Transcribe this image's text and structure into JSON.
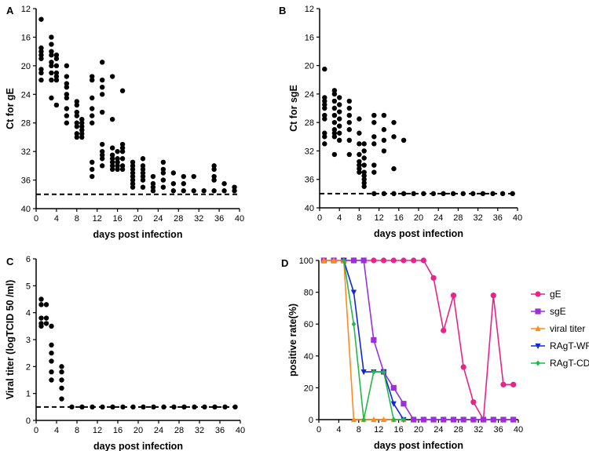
{
  "chart_data": [
    {
      "panel": "A",
      "type": "scatter",
      "xlabel": "days post infection",
      "ylabel": "Ct for gE",
      "xlim": [
        0,
        40
      ],
      "ylim": [
        12,
        40
      ],
      "y_inverted": true,
      "xticks": [
        0,
        4,
        8,
        12,
        16,
        20,
        24,
        28,
        32,
        36,
        40
      ],
      "yticks": [
        12,
        16,
        20,
        24,
        28,
        32,
        36,
        40
      ],
      "cutoff": 38,
      "points": [
        [
          1,
          13.5
        ],
        [
          1,
          17.5
        ],
        [
          1,
          18
        ],
        [
          1,
          18.5
        ],
        [
          1,
          19
        ],
        [
          1,
          20.5
        ],
        [
          1,
          21
        ],
        [
          1,
          22
        ],
        [
          3,
          16
        ],
        [
          3,
          17
        ],
        [
          3,
          18
        ],
        [
          3,
          18.5
        ],
        [
          3,
          19.5
        ],
        [
          3,
          20
        ],
        [
          3,
          21
        ],
        [
          3,
          22
        ],
        [
          3,
          24.5
        ],
        [
          4,
          18.5
        ],
        [
          4,
          19
        ],
        [
          4,
          20
        ],
        [
          4,
          21
        ],
        [
          4,
          21.5
        ],
        [
          4,
          22
        ],
        [
          4,
          25.5
        ],
        [
          6,
          20
        ],
        [
          6,
          21.5
        ],
        [
          6,
          22.5
        ],
        [
          6,
          23
        ],
        [
          6,
          24
        ],
        [
          6,
          24.5
        ],
        [
          6,
          26
        ],
        [
          6,
          27
        ],
        [
          6,
          28
        ],
        [
          8,
          25
        ],
        [
          8,
          25.5
        ],
        [
          8,
          26.5
        ],
        [
          8,
          27
        ],
        [
          8,
          28
        ],
        [
          8,
          28.5
        ],
        [
          8,
          29.5
        ],
        [
          8,
          30
        ],
        [
          9,
          27.5
        ],
        [
          9,
          28
        ],
        [
          9,
          28.5
        ],
        [
          9,
          29
        ],
        [
          9,
          29.5
        ],
        [
          9,
          30
        ],
        [
          11,
          21.5
        ],
        [
          11,
          22
        ],
        [
          11,
          24.5
        ],
        [
          11,
          26
        ],
        [
          11,
          27
        ],
        [
          11,
          28
        ],
        [
          11,
          33.5
        ],
        [
          11,
          34.5
        ],
        [
          11,
          35.5
        ],
        [
          13,
          19.5
        ],
        [
          13,
          22
        ],
        [
          13,
          23
        ],
        [
          13,
          24
        ],
        [
          13,
          26.5
        ],
        [
          13,
          31
        ],
        [
          13,
          32
        ],
        [
          13,
          32.5
        ],
        [
          13,
          33
        ],
        [
          13,
          34
        ],
        [
          15,
          21.5
        ],
        [
          15,
          27.5
        ],
        [
          15,
          31.5
        ],
        [
          15,
          32.5
        ],
        [
          15,
          33
        ],
        [
          15,
          33.5
        ],
        [
          15,
          34
        ],
        [
          15,
          34.5
        ],
        [
          16,
          32
        ],
        [
          16,
          33
        ],
        [
          16,
          33.5
        ],
        [
          16,
          34
        ],
        [
          16,
          34.5
        ],
        [
          17,
          23.5
        ],
        [
          17,
          31
        ],
        [
          17,
          31.5
        ],
        [
          17,
          32
        ],
        [
          17,
          33
        ],
        [
          17,
          34
        ],
        [
          17,
          34.5
        ],
        [
          19,
          33.5
        ],
        [
          19,
          34
        ],
        [
          19,
          34.5
        ],
        [
          19,
          35
        ],
        [
          19,
          35.5
        ],
        [
          19,
          36
        ],
        [
          19,
          36.5
        ],
        [
          19,
          37
        ],
        [
          21,
          33
        ],
        [
          21,
          34
        ],
        [
          21,
          34.5
        ],
        [
          21,
          35
        ],
        [
          21,
          35.5
        ],
        [
          21,
          36
        ],
        [
          21,
          37
        ],
        [
          23,
          35.5
        ],
        [
          23,
          36.5
        ],
        [
          23,
          37
        ],
        [
          23,
          37.5
        ],
        [
          25,
          33.5
        ],
        [
          25,
          34.5
        ],
        [
          25,
          35
        ],
        [
          25,
          36
        ],
        [
          25,
          37
        ],
        [
          27,
          35
        ],
        [
          27,
          36.5
        ],
        [
          27,
          37.5
        ],
        [
          29,
          35.5
        ],
        [
          29,
          36.5
        ],
        [
          29,
          37.5
        ],
        [
          31,
          35.5
        ],
        [
          31,
          37.5
        ],
        [
          33,
          37.5
        ],
        [
          35,
          34
        ],
        [
          35,
          34.5
        ],
        [
          35,
          35.5
        ],
        [
          35,
          36
        ],
        [
          35,
          37.5
        ],
        [
          37,
          36.5
        ],
        [
          37,
          37.5
        ],
        [
          39,
          37
        ],
        [
          39,
          37.5
        ]
      ]
    },
    {
      "panel": "B",
      "type": "scatter",
      "xlabel": "days post infection",
      "ylabel": "Ct for sgE",
      "xlim": [
        0,
        40
      ],
      "ylim": [
        12,
        40
      ],
      "y_inverted": true,
      "xticks": [
        0,
        4,
        8,
        12,
        16,
        20,
        24,
        28,
        32,
        36,
        40
      ],
      "yticks": [
        12,
        16,
        20,
        24,
        28,
        32,
        36,
        40
      ],
      "cutoff": 38,
      "points": [
        [
          1,
          20.5
        ],
        [
          1,
          24.5
        ],
        [
          1,
          25
        ],
        [
          1,
          25.5
        ],
        [
          1,
          26
        ],
        [
          1,
          27
        ],
        [
          1,
          27.5
        ],
        [
          1,
          29.5
        ],
        [
          1,
          30
        ],
        [
          1,
          31
        ],
        [
          3,
          23.5
        ],
        [
          3,
          24
        ],
        [
          3,
          25
        ],
        [
          3,
          26
        ],
        [
          3,
          27
        ],
        [
          3,
          28
        ],
        [
          3,
          29
        ],
        [
          3,
          29.5
        ],
        [
          3,
          30
        ],
        [
          3,
          32.5
        ],
        [
          4,
          24.5
        ],
        [
          4,
          25.5
        ],
        [
          4,
          26.5
        ],
        [
          4,
          27.5
        ],
        [
          4,
          28.5
        ],
        [
          4,
          29.5
        ],
        [
          4,
          30.5
        ],
        [
          6,
          25
        ],
        [
          6,
          26
        ],
        [
          6,
          27
        ],
        [
          6,
          28
        ],
        [
          6,
          29
        ],
        [
          6,
          30.5
        ],
        [
          6,
          32.5
        ],
        [
          8,
          27.5
        ],
        [
          8,
          29.5
        ],
        [
          8,
          31
        ],
        [
          8,
          32.5
        ],
        [
          8,
          33.5
        ],
        [
          8,
          34
        ],
        [
          8,
          34.5
        ],
        [
          8,
          35
        ],
        [
          9,
          31
        ],
        [
          9,
          32
        ],
        [
          9,
          33
        ],
        [
          9,
          34
        ],
        [
          9,
          35
        ],
        [
          9,
          35.5
        ],
        [
          9,
          36
        ],
        [
          9,
          36.5
        ],
        [
          9,
          37
        ],
        [
          11,
          27
        ],
        [
          11,
          28
        ],
        [
          11,
          30
        ],
        [
          11,
          31
        ],
        [
          11,
          34
        ],
        [
          11,
          35
        ],
        [
          13,
          27
        ],
        [
          13,
          29
        ],
        [
          13,
          30.5
        ],
        [
          13,
          32
        ],
        [
          15,
          28
        ],
        [
          15,
          30
        ],
        [
          15,
          34.5
        ],
        [
          17,
          30.5
        ],
        [
          11,
          38
        ],
        [
          13,
          38
        ],
        [
          15,
          38
        ],
        [
          17,
          38
        ],
        [
          19,
          38
        ],
        [
          21,
          38
        ],
        [
          23,
          38
        ],
        [
          25,
          38
        ],
        [
          27,
          38
        ],
        [
          29,
          38
        ],
        [
          31,
          38
        ],
        [
          33,
          38
        ],
        [
          35,
          38
        ],
        [
          37,
          38
        ],
        [
          39,
          38
        ]
      ]
    },
    {
      "panel": "C",
      "type": "scatter",
      "xlabel": "days post infection",
      "ylabel": "Viral titer (logTCID 50 /ml)",
      "xlim": [
        0,
        40
      ],
      "ylim": [
        0,
        6
      ],
      "y_inverted": false,
      "xticks": [
        0,
        4,
        8,
        12,
        16,
        20,
        24,
        28,
        32,
        36,
        40
      ],
      "yticks": [
        0,
        1,
        2,
        3,
        4,
        5,
        6
      ],
      "cutoff": 0.5,
      "points": [
        [
          1,
          4.5
        ],
        [
          1,
          4.3
        ],
        [
          1,
          3.8
        ],
        [
          1,
          3.6
        ],
        [
          1,
          3.5
        ],
        [
          2,
          4.3
        ],
        [
          2,
          3.8
        ],
        [
          2,
          3.6
        ],
        [
          3,
          3.5
        ],
        [
          3,
          2.8
        ],
        [
          3,
          2.5
        ],
        [
          3,
          2.2
        ],
        [
          3,
          1.8
        ],
        [
          3,
          1.5
        ],
        [
          5,
          2.0
        ],
        [
          5,
          1.8
        ],
        [
          5,
          1.5
        ],
        [
          5,
          1.2
        ],
        [
          5,
          0.8
        ],
        [
          7,
          0.5
        ],
        [
          9,
          0.5
        ],
        [
          11,
          0.5
        ],
        [
          13,
          0.5
        ],
        [
          15,
          0.5
        ],
        [
          17,
          0.5
        ],
        [
          19,
          0.5
        ],
        [
          21,
          0.5
        ],
        [
          23,
          0.5
        ],
        [
          25,
          0.5
        ],
        [
          27,
          0.5
        ],
        [
          29,
          0.5
        ],
        [
          31,
          0.5
        ],
        [
          33,
          0.5
        ],
        [
          35,
          0.5
        ],
        [
          37,
          0.5
        ],
        [
          39,
          0.5
        ]
      ]
    },
    {
      "panel": "D",
      "type": "line",
      "xlabel": "days post infection",
      "ylabel": "positive rate(%)",
      "xlim": [
        0,
        40
      ],
      "ylim": [
        0,
        100
      ],
      "xticks": [
        0,
        4,
        8,
        12,
        16,
        20,
        24,
        28,
        32,
        36,
        40
      ],
      "yticks": [
        0,
        20,
        40,
        60,
        80,
        100
      ],
      "legend_position": "right",
      "series": [
        {
          "name": "gE",
          "color": "#e8238a",
          "marker": "circle",
          "x": [
            1,
            3,
            5,
            7,
            9,
            11,
            13,
            15,
            17,
            19,
            21,
            23,
            25,
            27,
            29,
            31,
            33,
            35,
            37,
            39
          ],
          "y": [
            100,
            100,
            100,
            100,
            100,
            100,
            100,
            100,
            100,
            100,
            100,
            89,
            56,
            78,
            33,
            11,
            0,
            78,
            22,
            22
          ]
        },
        {
          "name": "sgE",
          "color": "#9b30d9",
          "marker": "square",
          "x": [
            1,
            3,
            5,
            7,
            9,
            11,
            13,
            15,
            17,
            19,
            21,
            23,
            25,
            27,
            29,
            31,
            33,
            35,
            37,
            39
          ],
          "y": [
            100,
            100,
            100,
            100,
            100,
            50,
            30,
            20,
            10,
            0,
            0,
            0,
            0,
            0,
            0,
            0,
            0,
            0,
            0,
            0
          ]
        },
        {
          "name": "viral titer",
          "color": "#ff8a1f",
          "marker": "triangle-up",
          "x": [
            1,
            3,
            5,
            7,
            9,
            11,
            13,
            15,
            17
          ],
          "y": [
            100,
            100,
            100,
            0,
            0,
            0,
            0,
            0,
            0
          ]
        },
        {
          "name": "RAgT-WF",
          "color": "#1228d6",
          "marker": "triangle-down",
          "x": [
            5,
            7,
            9,
            11,
            13,
            15,
            17
          ],
          "y": [
            100,
            80,
            30,
            30,
            30,
            10,
            0
          ]
        },
        {
          "name": "RAgT-CD",
          "color": "#22b84a",
          "marker": "diamond",
          "x": [
            5,
            7,
            9,
            11,
            13,
            15,
            17
          ],
          "y": [
            100,
            60,
            0,
            30,
            30,
            0,
            0
          ]
        }
      ]
    }
  ]
}
